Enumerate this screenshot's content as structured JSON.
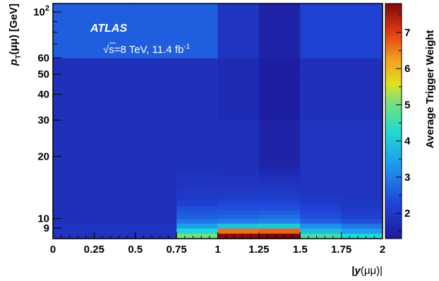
{
  "chart_data": {
    "type": "heatmap",
    "xlabel": "|y(μμ)|",
    "ylabel": "p_T(μμ) [GeV]",
    "zlabel": "Average Trigger Weight",
    "xlim": [
      0,
      2
    ],
    "ylim": [
      8,
      110
    ],
    "yscale": "log",
    "zlim": [
      1.3,
      7.8
    ],
    "x_ticks": [
      "0",
      "0.25",
      "0.5",
      "0.75",
      "1",
      "1.25",
      "1.5",
      "1.75",
      "2"
    ],
    "y_ticks": [
      {
        "value": 9,
        "label": "9"
      },
      {
        "value": 10,
        "label": "10"
      },
      {
        "value": 20,
        "label": "20"
      },
      {
        "value": 30,
        "label": "30"
      },
      {
        "value": 40,
        "label": "40"
      },
      {
        "value": 50,
        "label": "50"
      },
      {
        "value": 60,
        "label": "60"
      },
      {
        "value": 100,
        "label": "10",
        "sup": "2"
      }
    ],
    "z_ticks": [
      "2",
      "3",
      "4",
      "5",
      "6",
      "7"
    ],
    "x_edges": [
      0,
      0.25,
      0.5,
      0.75,
      1,
      1.25,
      1.5,
      1.75,
      2
    ],
    "y_edges": [
      8,
      8.5,
      9,
      9.5,
      10,
      10.5,
      11,
      11.5,
      12,
      12.5,
      13,
      14,
      15,
      16,
      17,
      18,
      20,
      22,
      25,
      30,
      35,
      40,
      50,
      60,
      110
    ],
    "values": [
      [
        1.8,
        1.8,
        1.8,
        5.0,
        7.7,
        7.8,
        4.6,
        4.2
      ],
      [
        1.9,
        1.9,
        1.9,
        4.2,
        6.6,
        6.7,
        3.8,
        3.4
      ],
      [
        1.9,
        1.9,
        1.9,
        3.4,
        3.9,
        4.0,
        3.2,
        2.9
      ],
      [
        1.8,
        1.8,
        1.8,
        2.9,
        3.0,
        3.1,
        2.6,
        2.4
      ],
      [
        1.8,
        1.8,
        1.8,
        2.6,
        2.7,
        2.8,
        2.4,
        2.2
      ],
      [
        1.8,
        1.8,
        1.8,
        2.5,
        2.5,
        2.6,
        2.3,
        2.1
      ],
      [
        1.8,
        1.8,
        1.8,
        2.4,
        2.4,
        2.4,
        2.2,
        2.0
      ],
      [
        1.8,
        1.8,
        1.8,
        2.2,
        2.3,
        2.3,
        2.1,
        2.0
      ],
      [
        1.8,
        1.8,
        1.8,
        2.1,
        2.2,
        2.2,
        2.0,
        2.0
      ],
      [
        1.8,
        1.8,
        1.8,
        2.0,
        2.1,
        2.1,
        2.0,
        1.9
      ],
      [
        1.8,
        1.8,
        1.8,
        2.0,
        2.0,
        2.0,
        1.9,
        1.9
      ],
      [
        1.8,
        1.8,
        1.8,
        1.9,
        1.9,
        1.9,
        1.9,
        1.9
      ],
      [
        1.8,
        1.8,
        1.8,
        1.9,
        1.9,
        1.8,
        1.9,
        1.9
      ],
      [
        1.8,
        1.8,
        1.8,
        1.9,
        1.8,
        1.7,
        1.9,
        1.9
      ],
      [
        1.8,
        1.8,
        1.8,
        1.8,
        1.8,
        1.6,
        1.9,
        1.9
      ],
      [
        1.8,
        1.8,
        1.8,
        1.8,
        1.8,
        1.5,
        1.9,
        1.9
      ],
      [
        1.8,
        1.8,
        1.8,
        1.8,
        1.8,
        1.5,
        1.9,
        1.9
      ],
      [
        1.8,
        1.8,
        1.8,
        1.8,
        1.8,
        1.5,
        1.9,
        1.9
      ],
      [
        1.8,
        1.8,
        1.8,
        1.8,
        1.8,
        1.5,
        1.9,
        1.9
      ],
      [
        1.8,
        1.8,
        1.8,
        1.8,
        1.7,
        1.4,
        1.8,
        1.8
      ],
      [
        1.8,
        1.8,
        1.8,
        1.8,
        1.7,
        1.4,
        1.8,
        1.8
      ],
      [
        1.8,
        1.8,
        1.8,
        1.8,
        1.7,
        1.4,
        1.8,
        1.8
      ],
      [
        1.8,
        1.8,
        1.8,
        1.8,
        1.7,
        1.4,
        1.8,
        1.8
      ],
      [
        2.6,
        2.6,
        2.6,
        2.6,
        1.9,
        1.5,
        2.2,
        2.2
      ]
    ],
    "annotations": {
      "experiment": "ATLAS",
      "energy": "√s=8 TeV, 11.4 fb",
      "energy_sup": "-1"
    },
    "grid": false
  }
}
